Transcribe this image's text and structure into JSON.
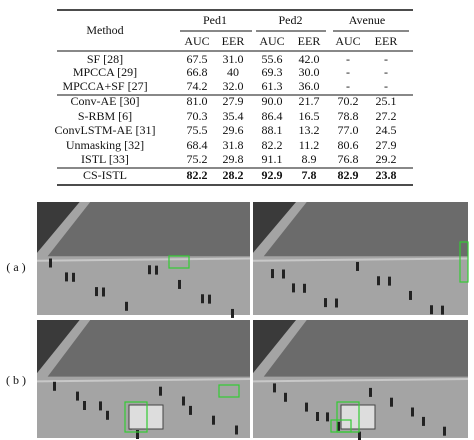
{
  "table": {
    "groups": [
      "Ped1",
      "Ped2",
      "Avenue"
    ],
    "method_header": "Method",
    "subheaders": [
      "AUC",
      "EER",
      "AUC",
      "EER",
      "AUC",
      "EER"
    ],
    "rows": [
      [
        "SF [28]",
        "67.5",
        "31.0",
        "55.6",
        "42.0",
        "-",
        "-"
      ],
      [
        "MPCCA [29]",
        "66.8",
        "40",
        "69.3",
        "30.0",
        "-",
        "-"
      ],
      [
        "MPCCA+SF [27]",
        "74.2",
        "32.0",
        "61.3",
        "36.0",
        "-",
        "-"
      ],
      [
        "Conv-AE [30]",
        "81.0",
        "27.9",
        "90.0",
        "21.7",
        "70.2",
        "25.1"
      ],
      [
        "S-RBM [6]",
        "70.3",
        "35.4",
        "86.4",
        "16.5",
        "78.8",
        "27.2"
      ],
      [
        "ConvLSTM-AE [31]",
        "75.5",
        "29.6",
        "88.1",
        "13.2",
        "77.0",
        "24.5"
      ],
      [
        "Unmasking [32]",
        "68.4",
        "31.8",
        "82.2",
        "11.2",
        "80.6",
        "27.9"
      ],
      [
        "ISTL [33]",
        "75.2",
        "29.8",
        "91.1",
        "8.9",
        "76.8",
        "29.2"
      ],
      [
        "CS-ISTL",
        "82.2",
        "28.2",
        "92.9",
        "7.8",
        "82.9",
        "23.8"
      ]
    ]
  },
  "figure": {
    "row_labels": [
      "( a )",
      "( b )"
    ]
  }
}
